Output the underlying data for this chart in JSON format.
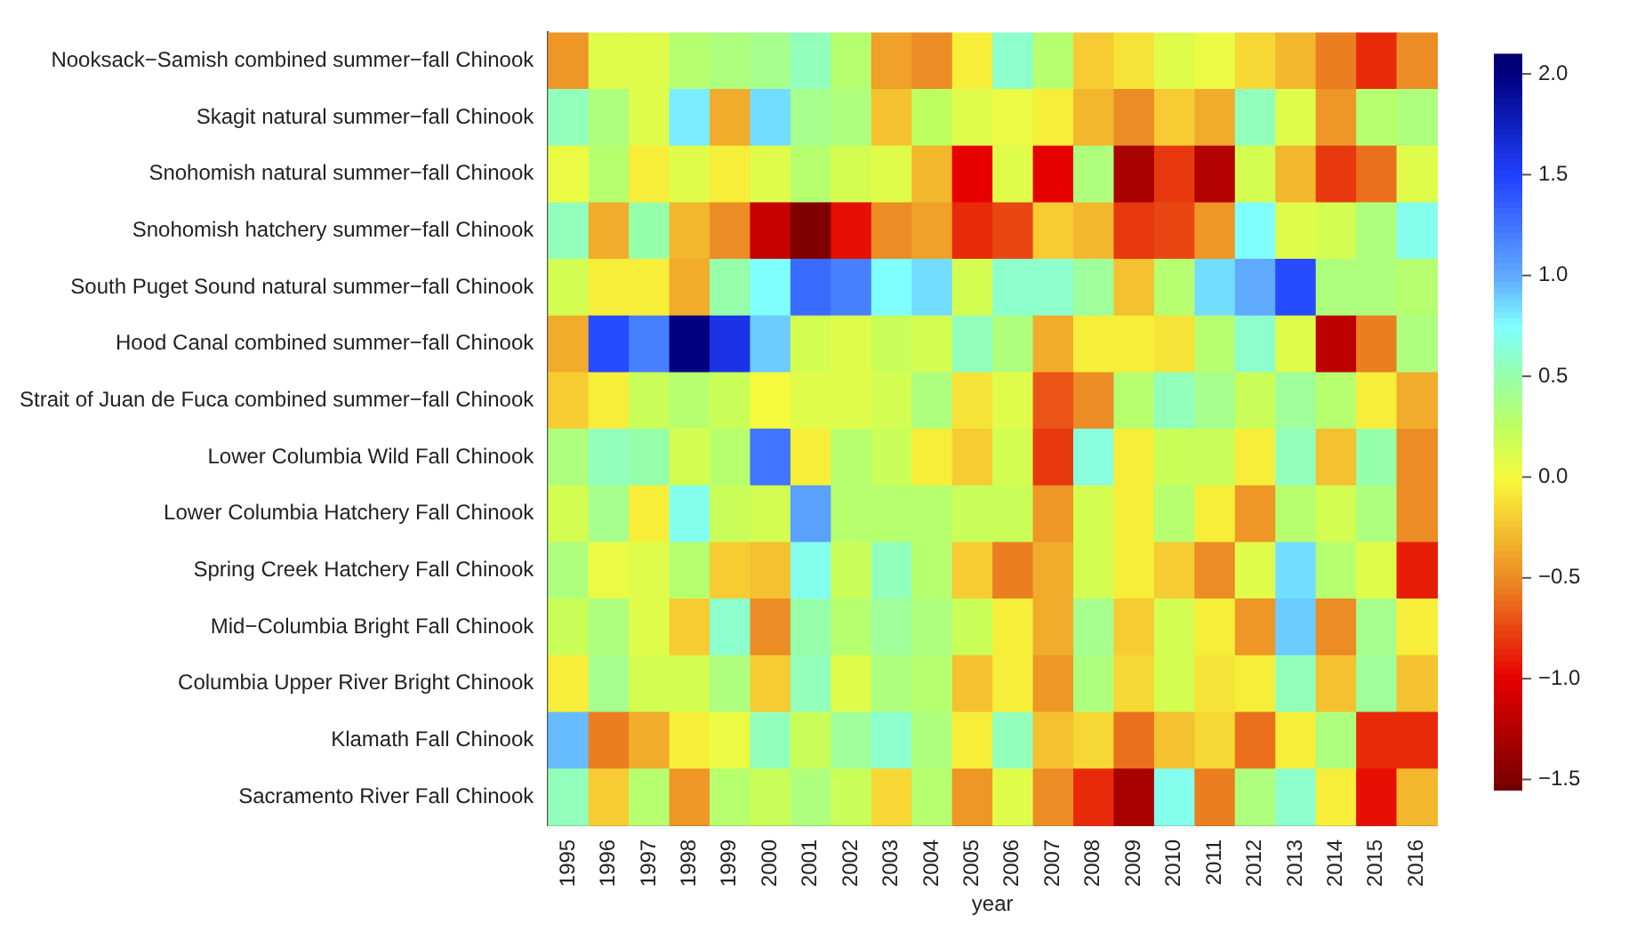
{
  "chart_data": {
    "type": "heatmap",
    "xlabel": "year",
    "categories": [
      "1995",
      "1996",
      "1997",
      "1998",
      "1999",
      "2000",
      "2001",
      "2002",
      "2003",
      "2004",
      "2005",
      "2006",
      "2007",
      "2008",
      "2009",
      "2010",
      "2011",
      "2012",
      "2013",
      "2014",
      "2015",
      "2016"
    ],
    "y_categories": [
      "Nooksack−Samish combined summer−fall Chinook",
      "Skagit natural summer−fall Chinook",
      "Snohomish natural summer−fall Chinook",
      "Snohomish hatchery summer−fall Chinook",
      "South Puget Sound natural summer−fall Chinook",
      "Hood Canal combined summer−fall Chinook",
      "Strait of Juan de Fuca combined summer−fall Chinook",
      "Lower Columbia Wild Fall Chinook",
      "Lower Columbia Hatchery Fall Chinook",
      "Spring Creek Hatchery Fall Chinook",
      "Mid−Columbia Bright Fall Chinook",
      "Columbia Upper River Bright Chinook",
      "Klamath Fall Chinook",
      "Sacramento River Fall Chinook"
    ],
    "cells": [
      [
        -0.45,
        0.1,
        0.1,
        0.3,
        0.35,
        0.4,
        0.55,
        0.3,
        -0.4,
        -0.5,
        -0.05,
        0.6,
        0.3,
        -0.2,
        -0.1,
        0.1,
        0.05,
        -0.15,
        -0.3,
        -0.55,
        -0.85,
        -0.5
      ],
      [
        0.55,
        0.35,
        0.1,
        0.8,
        -0.35,
        0.85,
        0.4,
        0.35,
        -0.25,
        0.25,
        0.1,
        0.05,
        -0.05,
        -0.3,
        -0.5,
        -0.2,
        -0.35,
        0.55,
        0.1,
        -0.45,
        0.3,
        0.35
      ],
      [
        0.05,
        0.3,
        -0.05,
        0.1,
        -0.05,
        0.1,
        0.3,
        0.15,
        0.1,
        -0.3,
        -1.0,
        0.1,
        -1.0,
        0.35,
        -1.3,
        -0.8,
        -1.25,
        0.15,
        -0.3,
        -0.8,
        -0.6,
        0.1
      ],
      [
        0.55,
        -0.35,
        0.5,
        -0.3,
        -0.5,
        -1.15,
        -1.5,
        -0.95,
        -0.5,
        -0.4,
        -0.85,
        -0.75,
        -0.2,
        -0.3,
        -0.8,
        -0.75,
        -0.45,
        0.75,
        0.1,
        0.15,
        0.35,
        0.7
      ],
      [
        0.15,
        -0.05,
        -0.05,
        -0.35,
        0.5,
        0.75,
        1.3,
        1.2,
        0.75,
        0.85,
        0.15,
        0.6,
        0.6,
        0.45,
        -0.25,
        0.3,
        0.85,
        1.0,
        1.45,
        0.35,
        0.35,
        0.3
      ],
      [
        -0.35,
        1.45,
        1.2,
        2.0,
        1.6,
        0.9,
        0.15,
        0.1,
        0.2,
        0.15,
        0.55,
        0.35,
        -0.35,
        -0.05,
        -0.05,
        -0.1,
        0.3,
        0.6,
        0.1,
        -1.2,
        -0.55,
        0.35
      ],
      [
        -0.2,
        -0.05,
        0.2,
        0.3,
        0.2,
        0.0,
        0.1,
        0.1,
        0.15,
        0.35,
        -0.1,
        0.1,
        -0.7,
        -0.5,
        0.3,
        0.55,
        0.4,
        0.2,
        0.45,
        0.3,
        -0.05,
        -0.35
      ],
      [
        0.35,
        0.55,
        0.5,
        0.15,
        0.3,
        1.25,
        -0.05,
        0.3,
        0.2,
        -0.05,
        -0.2,
        0.15,
        -0.8,
        0.65,
        -0.05,
        0.2,
        0.2,
        -0.05,
        0.55,
        -0.25,
        0.5,
        -0.5
      ],
      [
        0.15,
        0.4,
        -0.05,
        0.7,
        0.2,
        0.15,
        1.05,
        0.3,
        0.3,
        0.3,
        0.2,
        0.2,
        -0.45,
        0.15,
        -0.05,
        0.3,
        -0.05,
        -0.45,
        0.3,
        0.15,
        0.35,
        -0.5
      ],
      [
        0.35,
        0.05,
        0.1,
        0.3,
        -0.2,
        -0.25,
        0.7,
        0.2,
        0.55,
        0.3,
        -0.2,
        -0.55,
        -0.35,
        0.15,
        -0.05,
        -0.2,
        -0.5,
        0.1,
        0.85,
        0.3,
        0.1,
        -0.9
      ],
      [
        0.2,
        0.35,
        0.1,
        -0.2,
        0.6,
        -0.5,
        0.5,
        0.3,
        0.45,
        0.35,
        0.2,
        -0.05,
        -0.35,
        0.4,
        -0.2,
        0.15,
        -0.05,
        -0.45,
        0.9,
        -0.5,
        0.4,
        -0.05
      ],
      [
        -0.05,
        0.4,
        0.15,
        0.15,
        0.35,
        -0.2,
        0.55,
        0.1,
        0.35,
        0.3,
        -0.25,
        -0.05,
        -0.45,
        0.35,
        -0.15,
        0.15,
        -0.1,
        -0.05,
        0.55,
        -0.25,
        0.45,
        -0.25
      ],
      [
        0.95,
        -0.55,
        -0.35,
        -0.05,
        0.05,
        0.55,
        0.2,
        0.45,
        0.6,
        0.35,
        -0.05,
        0.55,
        -0.25,
        -0.15,
        -0.6,
        -0.25,
        -0.15,
        -0.6,
        -0.05,
        0.35,
        -0.85,
        -0.85
      ],
      [
        0.55,
        -0.2,
        0.3,
        -0.45,
        0.3,
        0.2,
        0.35,
        0.2,
        -0.15,
        0.3,
        -0.45,
        0.1,
        -0.5,
        -0.85,
        -1.3,
        0.7,
        -0.55,
        0.35,
        0.6,
        -0.05,
        -0.95,
        -0.3
      ]
    ],
    "clim": [
      -1.55,
      2.1
    ],
    "cticks": [
      {
        "value": 2.0,
        "label": "2.0"
      },
      {
        "value": 1.5,
        "label": "1.5"
      },
      {
        "value": 1.0,
        "label": "1.0"
      },
      {
        "value": 0.5,
        "label": "0.5"
      },
      {
        "value": 0.0,
        "label": "0.0"
      },
      {
        "value": -0.5,
        "label": "−0.5"
      },
      {
        "value": -1.0,
        "label": "−1.0"
      },
      {
        "value": -1.5,
        "label": "−1.5"
      }
    ]
  }
}
